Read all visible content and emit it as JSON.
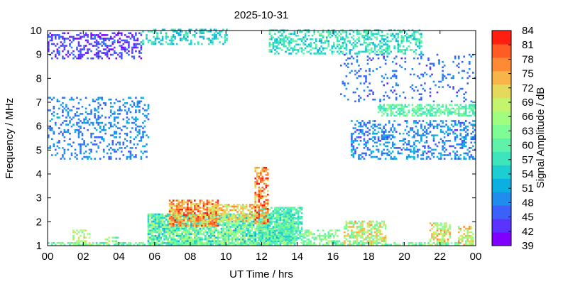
{
  "chart_data": {
    "type": "heatmap",
    "title": "2025-10-31",
    "xlabel": "UT Time / hrs",
    "ylabel": "Frequency / MHz",
    "xlim": [
      0,
      24
    ],
    "ylim": [
      1,
      10
    ],
    "x_ticks": [
      "00",
      "02",
      "04",
      "06",
      "08",
      "10",
      "12",
      "14",
      "16",
      "18",
      "20",
      "22",
      "00"
    ],
    "y_ticks": [
      1,
      2,
      3,
      4,
      5,
      6,
      7,
      8,
      9,
      10
    ],
    "grid": false,
    "colorbar": {
      "label": "Signal Amplitude / dB",
      "range": [
        39,
        84
      ],
      "ticks": [
        39,
        42,
        45,
        48,
        51,
        54,
        57,
        60,
        63,
        66,
        69,
        72,
        75,
        78,
        81,
        84
      ],
      "colors": [
        "#7f00ff",
        "#5b33fe",
        "#3c61f8",
        "#1f8cee",
        "#0ab1e0",
        "#1ccdd1",
        "#3ee4bc",
        "#5ef3a8",
        "#7dfd93",
        "#a0fd80",
        "#c4f36c",
        "#e4d95a",
        "#f7b448",
        "#ff8a36",
        "#ff5b24",
        "#ff1e10"
      ]
    },
    "regions": [
      {
        "t": [
          0,
          5.6
        ],
        "f": [
          4.6,
          7.2
        ],
        "level": [
          45,
          52
        ],
        "density": 0.25
      },
      {
        "t": [
          0,
          5.2
        ],
        "f": [
          8.8,
          9.9
        ],
        "level": [
          40,
          48
        ],
        "density": 0.4
      },
      {
        "t": [
          5.2,
          10
        ],
        "f": [
          9.4,
          10
        ],
        "level": [
          50,
          60
        ],
        "density": 0.35
      },
      {
        "t": [
          12.4,
          21
        ],
        "f": [
          9.0,
          10
        ],
        "level": [
          52,
          62
        ],
        "density": 0.45
      },
      {
        "t": [
          18.5,
          24
        ],
        "f": [
          6.4,
          6.9
        ],
        "level": [
          56,
          64
        ],
        "density": 0.6
      },
      {
        "t": [
          17,
          24
        ],
        "f": [
          4.6,
          6.2
        ],
        "level": [
          44,
          54
        ],
        "density": 0.35
      },
      {
        "t": [
          16.4,
          24
        ],
        "f": [
          7.0,
          9.0
        ],
        "level": [
          44,
          50
        ],
        "density": 0.12
      },
      {
        "t": [
          5.6,
          13.8
        ],
        "f": [
          1.0,
          2.3
        ],
        "level": [
          52,
          70
        ],
        "density": 0.85
      },
      {
        "t": [
          11.8,
          14.2
        ],
        "f": [
          1.2,
          2.6
        ],
        "level": [
          54,
          64
        ],
        "density": 0.7
      },
      {
        "t": [
          6.8,
          9.5
        ],
        "f": [
          1.8,
          2.9
        ],
        "level": [
          68,
          84
        ],
        "density": 0.7
      },
      {
        "t": [
          9.2,
          11.6
        ],
        "f": [
          2.0,
          2.7
        ],
        "level": [
          66,
          78
        ],
        "density": 0.6
      },
      {
        "t": [
          11.6,
          12.3
        ],
        "f": [
          1.9,
          4.3
        ],
        "level": [
          70,
          84
        ],
        "density": 0.55
      },
      {
        "t": [
          14.2,
          16.4
        ],
        "f": [
          1.0,
          1.6
        ],
        "level": [
          58,
          68
        ],
        "density": 0.45
      },
      {
        "t": [
          16.6,
          19.0
        ],
        "f": [
          1.0,
          2.0
        ],
        "level": [
          60,
          76
        ],
        "density": 0.6
      },
      {
        "t": [
          21.4,
          22.6
        ],
        "f": [
          1.0,
          1.9
        ],
        "level": [
          62,
          78
        ],
        "density": 0.55
      },
      {
        "t": [
          23.0,
          23.9
        ],
        "f": [
          1.0,
          1.8
        ],
        "level": [
          62,
          78
        ],
        "density": 0.55
      },
      {
        "t": [
          1.4,
          2.4
        ],
        "f": [
          1.0,
          1.6
        ],
        "level": [
          62,
          74
        ],
        "density": 0.45
      },
      {
        "t": [
          3.2,
          4.0
        ],
        "f": [
          1.0,
          1.3
        ],
        "level": [
          58,
          70
        ],
        "density": 0.4
      },
      {
        "t": [
          0,
          24
        ],
        "f": [
          1.0,
          1.1
        ],
        "level": [
          56,
          66
        ],
        "density": 0.5
      }
    ]
  }
}
